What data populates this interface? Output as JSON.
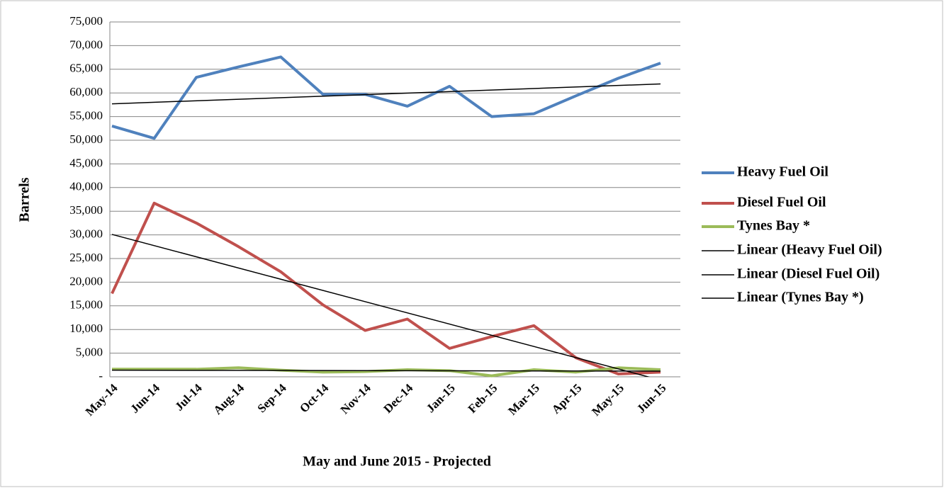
{
  "chart_data": {
    "type": "line",
    "x_label": "May and June 2015 - Projected",
    "y_label": "Barrels",
    "categories": [
      "May-14",
      "Jun-14",
      "Jul-14",
      "Aug-14",
      "Sep-14",
      "Oct-14",
      "Nov-14",
      "Dec-14",
      "Jan-15",
      "Feb-15",
      "Mar-15",
      "Apr-15",
      "May-15",
      "Jun-15"
    ],
    "series": [
      {
        "name": "Heavy Fuel Oil",
        "color": "#4f81bd",
        "values": [
          53000,
          50400,
          63300,
          65500,
          67600,
          59700,
          59700,
          57200,
          61400,
          55000,
          55600,
          59400,
          63100,
          66300
        ]
      },
      {
        "name": "Diesel Fuel Oil",
        "color": "#c0504d",
        "values": [
          17600,
          36700,
          32500,
          27500,
          22200,
          15200,
          9800,
          12200,
          6000,
          8500,
          10800,
          4000,
          600,
          1000
        ]
      },
      {
        "name": "Tynes Bay *",
        "color": "#9bbb59",
        "values": [
          1600,
          1600,
          1600,
          1900,
          1400,
          1000,
          1100,
          1500,
          1300,
          200,
          1500,
          1000,
          1900,
          1500
        ]
      }
    ],
    "trendlines": [
      {
        "name": "Linear (Heavy Fuel Oil)",
        "color": "#000000",
        "start": 57700,
        "end": 61900
      },
      {
        "name": "Linear (Diesel Fuel Oil)",
        "color": "#000000",
        "start": 30100,
        "end": -700
      },
      {
        "name": "Linear (Tynes Bay *)",
        "color": "#000000",
        "start": 1400,
        "end": 1200
      }
    ],
    "ylim": [
      0,
      75000
    ],
    "yticks": [
      {
        "value": 0,
        "label": "-"
      },
      {
        "value": 5000,
        "label": "5,000"
      },
      {
        "value": 10000,
        "label": "10,000"
      },
      {
        "value": 15000,
        "label": "15,000"
      },
      {
        "value": 20000,
        "label": "20,000"
      },
      {
        "value": 25000,
        "label": "25,000"
      },
      {
        "value": 30000,
        "label": "30,000"
      },
      {
        "value": 35000,
        "label": "35,000"
      },
      {
        "value": 40000,
        "label": "40,000"
      },
      {
        "value": 45000,
        "label": "45,000"
      },
      {
        "value": 50000,
        "label": "50,000"
      },
      {
        "value": 55000,
        "label": "55,000"
      },
      {
        "value": 60000,
        "label": "60,000"
      },
      {
        "value": 65000,
        "label": "65,000"
      },
      {
        "value": 70000,
        "label": "70,000"
      },
      {
        "value": 75000,
        "label": "75,000"
      }
    ],
    "grid": true,
    "legend": "right"
  }
}
